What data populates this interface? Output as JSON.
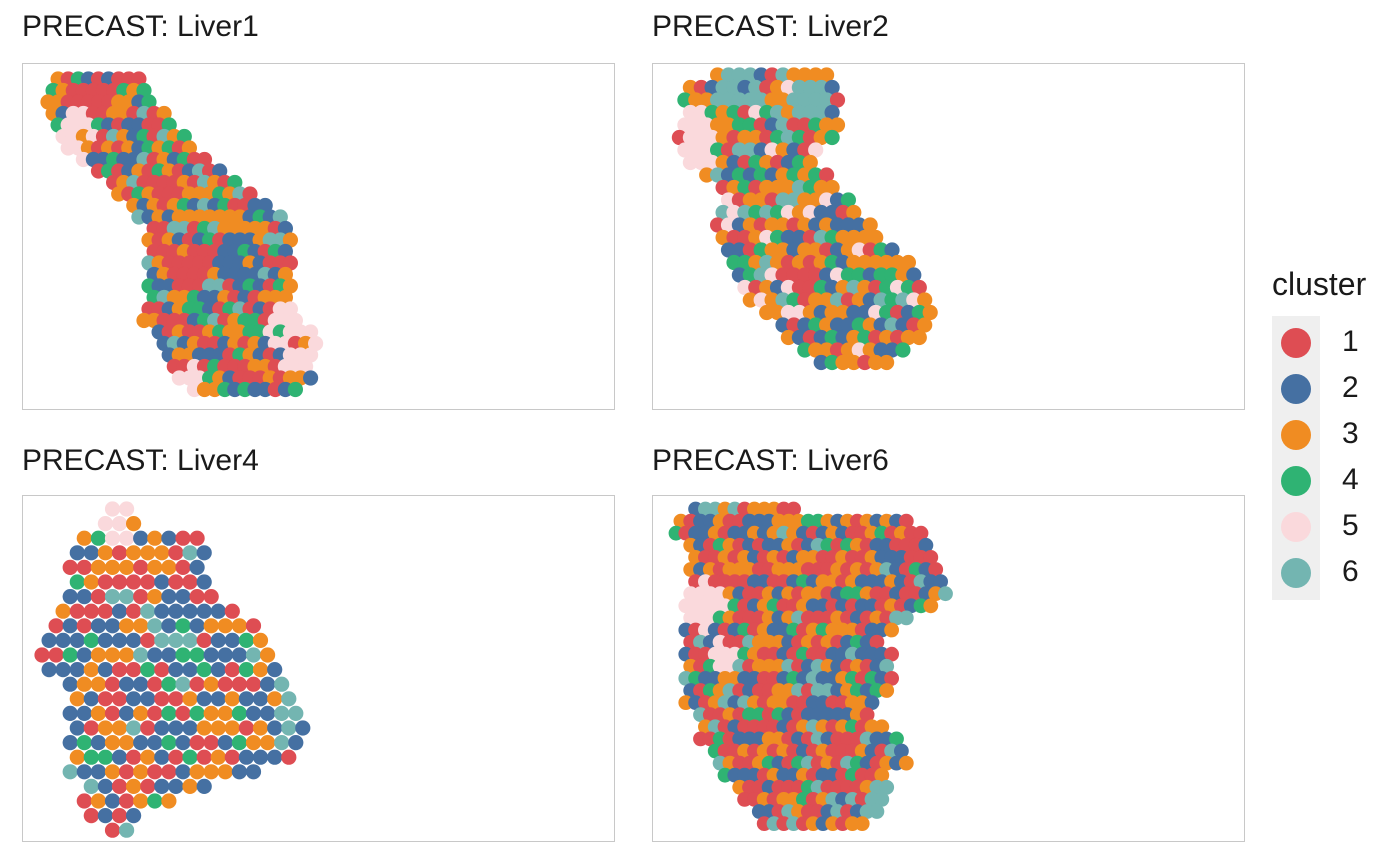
{
  "chart_data": {
    "type": "scatter",
    "legend": {
      "title": "cluster",
      "placement": "right",
      "items": [
        {
          "label": "1",
          "color": "#DE4D53"
        },
        {
          "label": "2",
          "color": "#4570A2"
        },
        {
          "label": "3",
          "color": "#F08C22"
        },
        {
          "label": "4",
          "color": "#2FB373"
        },
        {
          "label": "5",
          "color": "#FAD9DC"
        },
        {
          "label": "6",
          "color": "#73B5B1"
        }
      ]
    },
    "panels": [
      {
        "title": "PRECAST: Liver1",
        "cols": [
          0,
          54
        ],
        "rows": [
          [
            0,
            2,
            18
          ],
          [
            1,
            1,
            19
          ],
          [
            2,
            0,
            21
          ],
          [
            3,
            1,
            23
          ],
          [
            4,
            2,
            25
          ],
          [
            5,
            3,
            27
          ],
          [
            6,
            4,
            29
          ],
          [
            7,
            6,
            32
          ],
          [
            8,
            10,
            35
          ],
          [
            9,
            12,
            38
          ],
          [
            10,
            14,
            41
          ],
          [
            11,
            16,
            44
          ],
          [
            12,
            18,
            46
          ],
          [
            13,
            20,
            48
          ],
          [
            14,
            20,
            48
          ],
          [
            15,
            20,
            48
          ],
          [
            16,
            20,
            48
          ],
          [
            17,
            20,
            48
          ],
          [
            18,
            20,
            48
          ],
          [
            19,
            21,
            48
          ],
          [
            20,
            20,
            48
          ],
          [
            21,
            19,
            50
          ],
          [
            22,
            21,
            52
          ],
          [
            23,
            22,
            53
          ],
          [
            24,
            23,
            53
          ],
          [
            25,
            25,
            52
          ],
          [
            26,
            26,
            52
          ],
          [
            27,
            28,
            50
          ]
        ],
        "regions": [
          {
            "cluster": 5,
            "col": 50,
            "row": 22,
            "r": 3.4
          },
          {
            "cluster": 5,
            "col": 6,
            "row": 5,
            "r": 2.2
          },
          {
            "cluster": 5,
            "col": 28,
            "row": 26,
            "r": 1.8
          },
          {
            "cluster": 2,
            "col": 38,
            "row": 16,
            "r": 2.4
          },
          {
            "cluster": 1,
            "col": 28,
            "row": 16,
            "r": 2.2
          },
          {
            "cluster": 1,
            "col": 8,
            "row": 2,
            "r": 2.2
          }
        ],
        "background": [
          1,
          3,
          2,
          4,
          1,
          6,
          3,
          1,
          2,
          4,
          1,
          3
        ]
      },
      {
        "title": "PRECAST: Liver2",
        "cols": [
          0,
          50
        ],
        "rows": [
          [
            0,
            8,
            28
          ],
          [
            1,
            3,
            30
          ],
          [
            2,
            2,
            30
          ],
          [
            3,
            3,
            30
          ],
          [
            4,
            2,
            30
          ],
          [
            5,
            1,
            29
          ],
          [
            6,
            1,
            27
          ],
          [
            7,
            2,
            26
          ],
          [
            8,
            6,
            28
          ],
          [
            9,
            8,
            30
          ],
          [
            10,
            9,
            32
          ],
          [
            11,
            9,
            34
          ],
          [
            12,
            8,
            36
          ],
          [
            13,
            9,
            38
          ],
          [
            14,
            9,
            40
          ],
          [
            15,
            10,
            43
          ],
          [
            16,
            11,
            45
          ],
          [
            17,
            12,
            46
          ],
          [
            18,
            14,
            47
          ],
          [
            19,
            17,
            47
          ],
          [
            20,
            19,
            46
          ],
          [
            21,
            21,
            45
          ],
          [
            22,
            24,
            42
          ],
          [
            23,
            27,
            40
          ]
        ],
        "regions": [
          {
            "cluster": 5,
            "col": 2,
            "row": 5,
            "r": 3.0
          },
          {
            "cluster": 6,
            "col": 12,
            "row": 1,
            "r": 2.0
          },
          {
            "cluster": 6,
            "col": 25,
            "row": 2,
            "r": 2.0
          }
        ],
        "background": [
          3,
          1,
          2,
          3,
          4,
          3,
          6,
          1,
          2,
          3,
          4,
          5
        ]
      },
      {
        "title": "PRECAST: Liver4",
        "cols": [
          0,
          38
        ],
        "rows": [
          [
            0,
            10,
            12
          ],
          [
            1,
            8,
            14
          ],
          [
            2,
            6,
            22
          ],
          [
            3,
            4,
            23
          ],
          [
            4,
            4,
            23
          ],
          [
            5,
            4,
            23
          ],
          [
            6,
            4,
            24
          ],
          [
            7,
            3,
            28
          ],
          [
            8,
            1,
            30
          ],
          [
            9,
            1,
            32
          ],
          [
            10,
            0,
            33
          ],
          [
            11,
            1,
            34
          ],
          [
            12,
            3,
            35
          ],
          [
            13,
            4,
            36
          ],
          [
            14,
            4,
            37
          ],
          [
            15,
            4,
            38
          ],
          [
            16,
            4,
            36
          ],
          [
            17,
            4,
            35
          ],
          [
            18,
            4,
            30
          ],
          [
            19,
            6,
            24
          ],
          [
            20,
            6,
            18
          ],
          [
            21,
            7,
            14
          ],
          [
            22,
            9,
            12
          ]
        ],
        "regions": [
          {
            "cluster": 5,
            "col": 11,
            "row": 1,
            "r": 1.4
          },
          {
            "cluster": 6,
            "col": 35,
            "row": 15,
            "r": 1.8
          }
        ],
        "background": [
          1,
          2,
          3,
          2,
          1,
          4,
          2,
          3,
          1,
          6,
          2,
          3
        ]
      },
      {
        "title": "PRECAST: Liver6",
        "cols": [
          0,
          55
        ],
        "rows": [
          [
            0,
            3,
            24
          ],
          [
            1,
            0,
            48
          ],
          [
            2,
            0,
            50
          ],
          [
            3,
            3,
            52
          ],
          [
            4,
            3,
            53
          ],
          [
            5,
            2,
            54
          ],
          [
            6,
            3,
            54
          ],
          [
            7,
            3,
            55
          ],
          [
            8,
            2,
            52
          ],
          [
            9,
            2,
            48
          ],
          [
            10,
            2,
            44
          ],
          [
            11,
            2,
            42
          ],
          [
            12,
            2,
            44
          ],
          [
            13,
            2,
            44
          ],
          [
            14,
            2,
            44
          ],
          [
            15,
            2,
            44
          ],
          [
            16,
            2,
            40
          ],
          [
            17,
            4,
            40
          ],
          [
            18,
            5,
            42
          ],
          [
            19,
            5,
            45
          ],
          [
            20,
            7,
            47
          ],
          [
            21,
            8,
            47
          ],
          [
            22,
            10,
            43
          ],
          [
            23,
            12,
            44
          ],
          [
            24,
            14,
            43
          ],
          [
            25,
            16,
            42
          ],
          [
            26,
            18,
            38
          ]
        ],
        "regions": [
          {
            "cluster": 5,
            "col": 6,
            "row": 8,
            "r": 2.2
          },
          {
            "cluster": 5,
            "col": 10,
            "row": 12,
            "r": 1.6
          },
          {
            "cluster": 6,
            "col": 42,
            "row": 24,
            "r": 1.8
          }
        ],
        "background": [
          1,
          2,
          3,
          1,
          4,
          2,
          3,
          1,
          6,
          2,
          1,
          3
        ]
      }
    ]
  }
}
